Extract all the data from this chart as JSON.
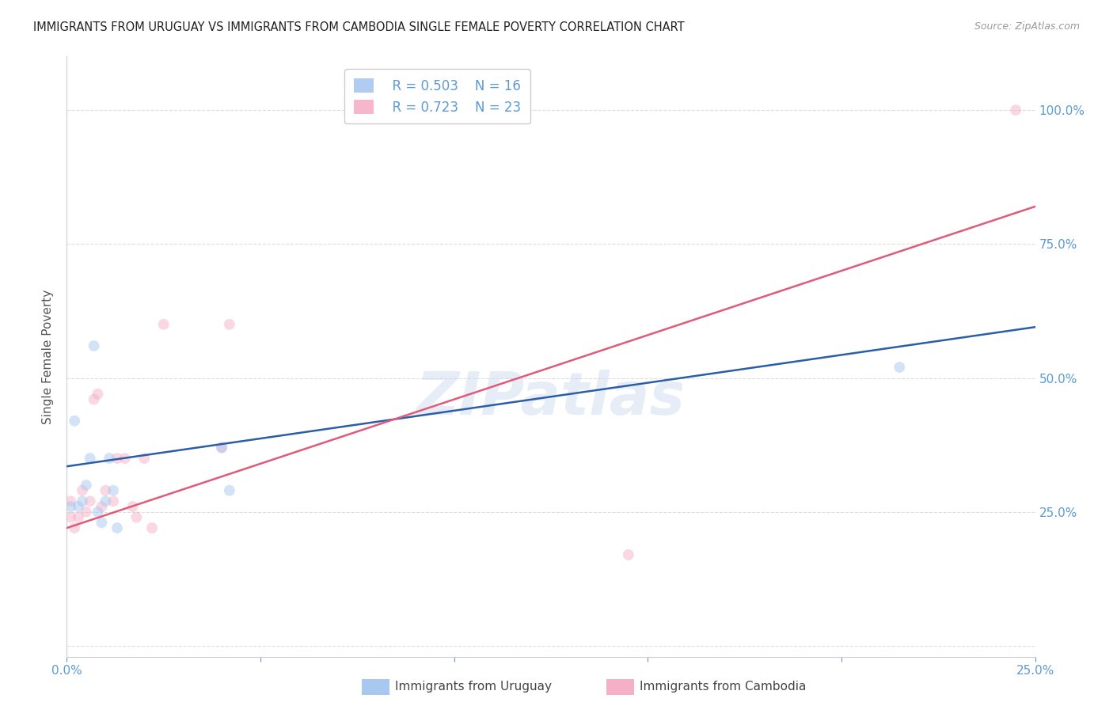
{
  "title": "IMMIGRANTS FROM URUGUAY VS IMMIGRANTS FROM CAMBODIA SINGLE FEMALE POVERTY CORRELATION CHART",
  "source": "Source: ZipAtlas.com",
  "ylabel": "Single Female Poverty",
  "y_ticks": [
    0.0,
    0.25,
    0.5,
    0.75,
    1.0
  ],
  "y_tick_labels": [
    "",
    "25.0%",
    "50.0%",
    "75.0%",
    "100.0%"
  ],
  "x_ticks": [
    0.0,
    0.05,
    0.1,
    0.15,
    0.2,
    0.25
  ],
  "x_tick_labels": [
    "0.0%",
    "",
    "",
    "",
    "",
    "25.0%"
  ],
  "xlim": [
    0.0,
    0.25
  ],
  "ylim": [
    -0.02,
    1.1
  ],
  "uruguay_color": "#A8C8F0",
  "cambodia_color": "#F5B0C8",
  "uruguay_line_color": "#2B5EA7",
  "cambodia_line_color": "#E05A7A",
  "legend_r_uruguay": "R = 0.503",
  "legend_n_uruguay": "N = 16",
  "legend_r_cambodia": "R = 0.723",
  "legend_n_cambodia": "N = 23",
  "watermark": "ZIPatlas",
  "background_color": "#ffffff",
  "grid_color": "#DDDDDD",
  "tick_color": "#5B9BD5",
  "uruguay_x": [
    0.001,
    0.002,
    0.003,
    0.004,
    0.005,
    0.006,
    0.007,
    0.008,
    0.009,
    0.01,
    0.011,
    0.012,
    0.013,
    0.04,
    0.042,
    0.215
  ],
  "uruguay_y": [
    0.26,
    0.42,
    0.26,
    0.27,
    0.3,
    0.35,
    0.56,
    0.25,
    0.23,
    0.27,
    0.35,
    0.29,
    0.22,
    0.37,
    0.29,
    0.52
  ],
  "cambodia_x": [
    0.001,
    0.001,
    0.002,
    0.003,
    0.004,
    0.005,
    0.006,
    0.007,
    0.008,
    0.009,
    0.01,
    0.012,
    0.013,
    0.015,
    0.017,
    0.018,
    0.02,
    0.022,
    0.025,
    0.04,
    0.042,
    0.145,
    0.245
  ],
  "cambodia_y": [
    0.27,
    0.24,
    0.22,
    0.24,
    0.29,
    0.25,
    0.27,
    0.46,
    0.47,
    0.26,
    0.29,
    0.27,
    0.35,
    0.35,
    0.26,
    0.24,
    0.35,
    0.22,
    0.6,
    0.37,
    0.6,
    0.17,
    1.0
  ],
  "marker_size": 100,
  "marker_alpha": 0.5,
  "line_width": 1.8,
  "uruguay_line_b": 0.335,
  "uruguay_line_m": 1.04,
  "cambodia_line_b": 0.22,
  "cambodia_line_m": 2.4
}
